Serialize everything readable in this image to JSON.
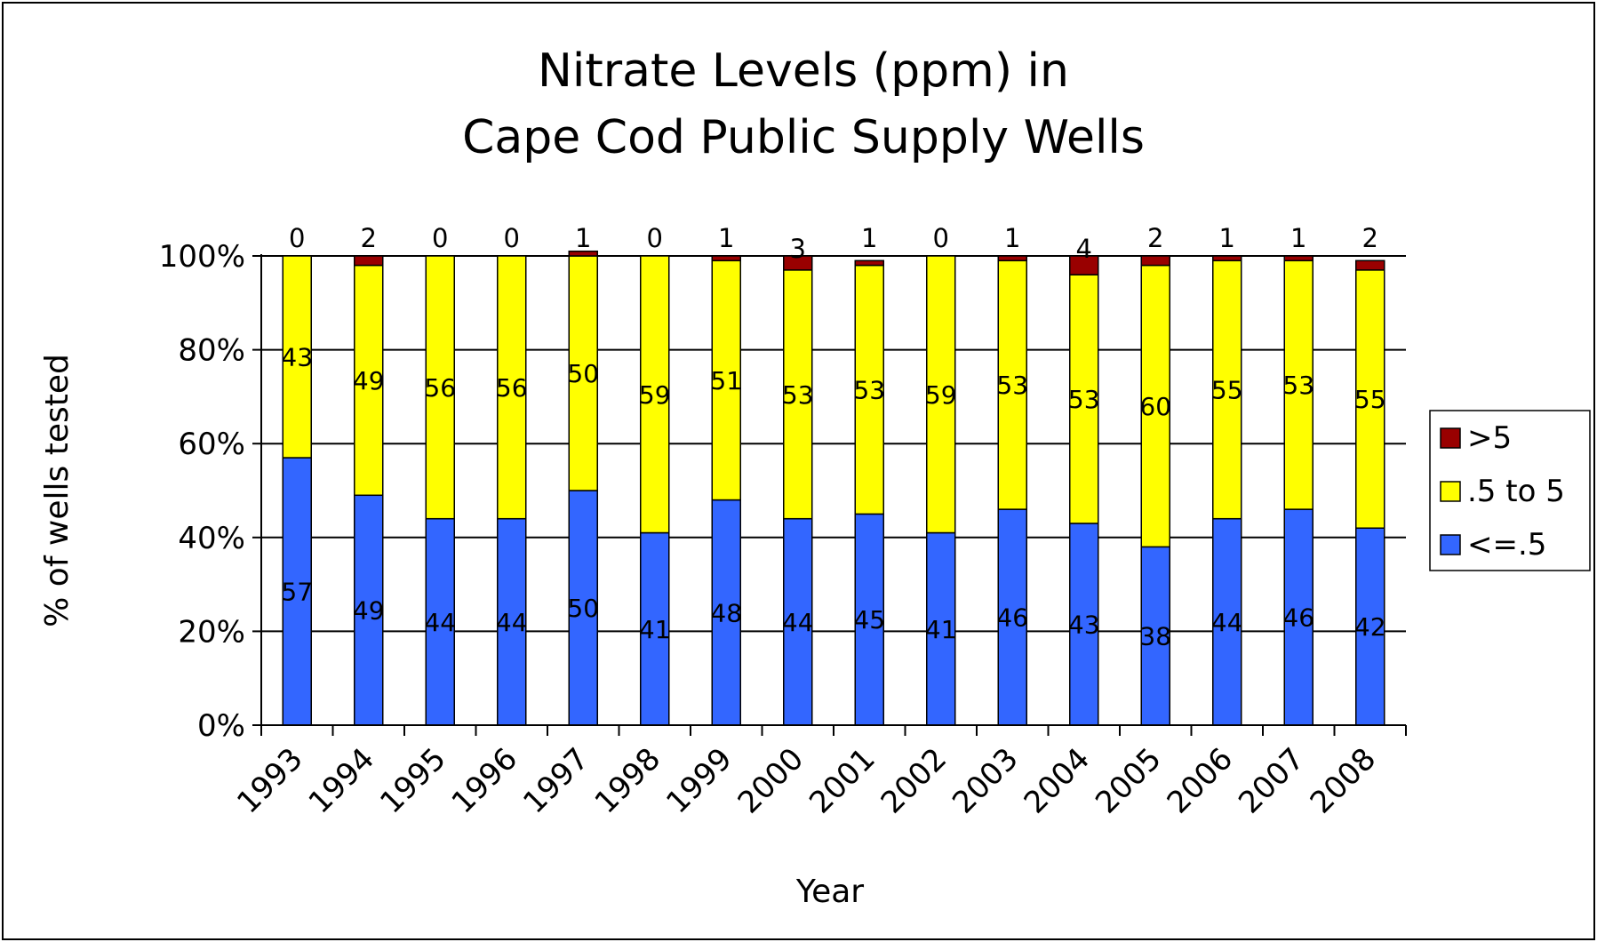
{
  "chart_data": {
    "type": "bar",
    "stacked": true,
    "title": [
      "Nitrate Levels (ppm) in",
      "Cape Cod Public Supply Wells"
    ],
    "xlabel": "Year",
    "ylabel": "% of wells tested",
    "ylim": [
      0,
      100
    ],
    "yticks": [
      "0%",
      "20%",
      "40%",
      "60%",
      "80%",
      "100%"
    ],
    "grid": true,
    "legend_position": "right",
    "categories": [
      "1993",
      "1994",
      "1995",
      "1996",
      "1997",
      "1998",
      "1999",
      "2000",
      "2001",
      "2002",
      "2003",
      "2004",
      "2005",
      "2006",
      "2007",
      "2008"
    ],
    "series": [
      {
        "name": "<=.5",
        "color": "#3366FF",
        "values": [
          57,
          49,
          44,
          44,
          50,
          41,
          48,
          44,
          45,
          41,
          46,
          43,
          38,
          44,
          46,
          42
        ]
      },
      {
        "name": ".5 to 5",
        "color": "#FFFF00",
        "values": [
          43,
          49,
          56,
          56,
          50,
          59,
          51,
          53,
          53,
          59,
          53,
          53,
          60,
          55,
          53,
          55
        ]
      },
      {
        "name": ">5",
        "color": "#990000",
        "values": [
          0,
          2,
          0,
          0,
          1,
          0,
          1,
          3,
          1,
          0,
          1,
          4,
          2,
          1,
          1,
          2
        ]
      }
    ]
  }
}
